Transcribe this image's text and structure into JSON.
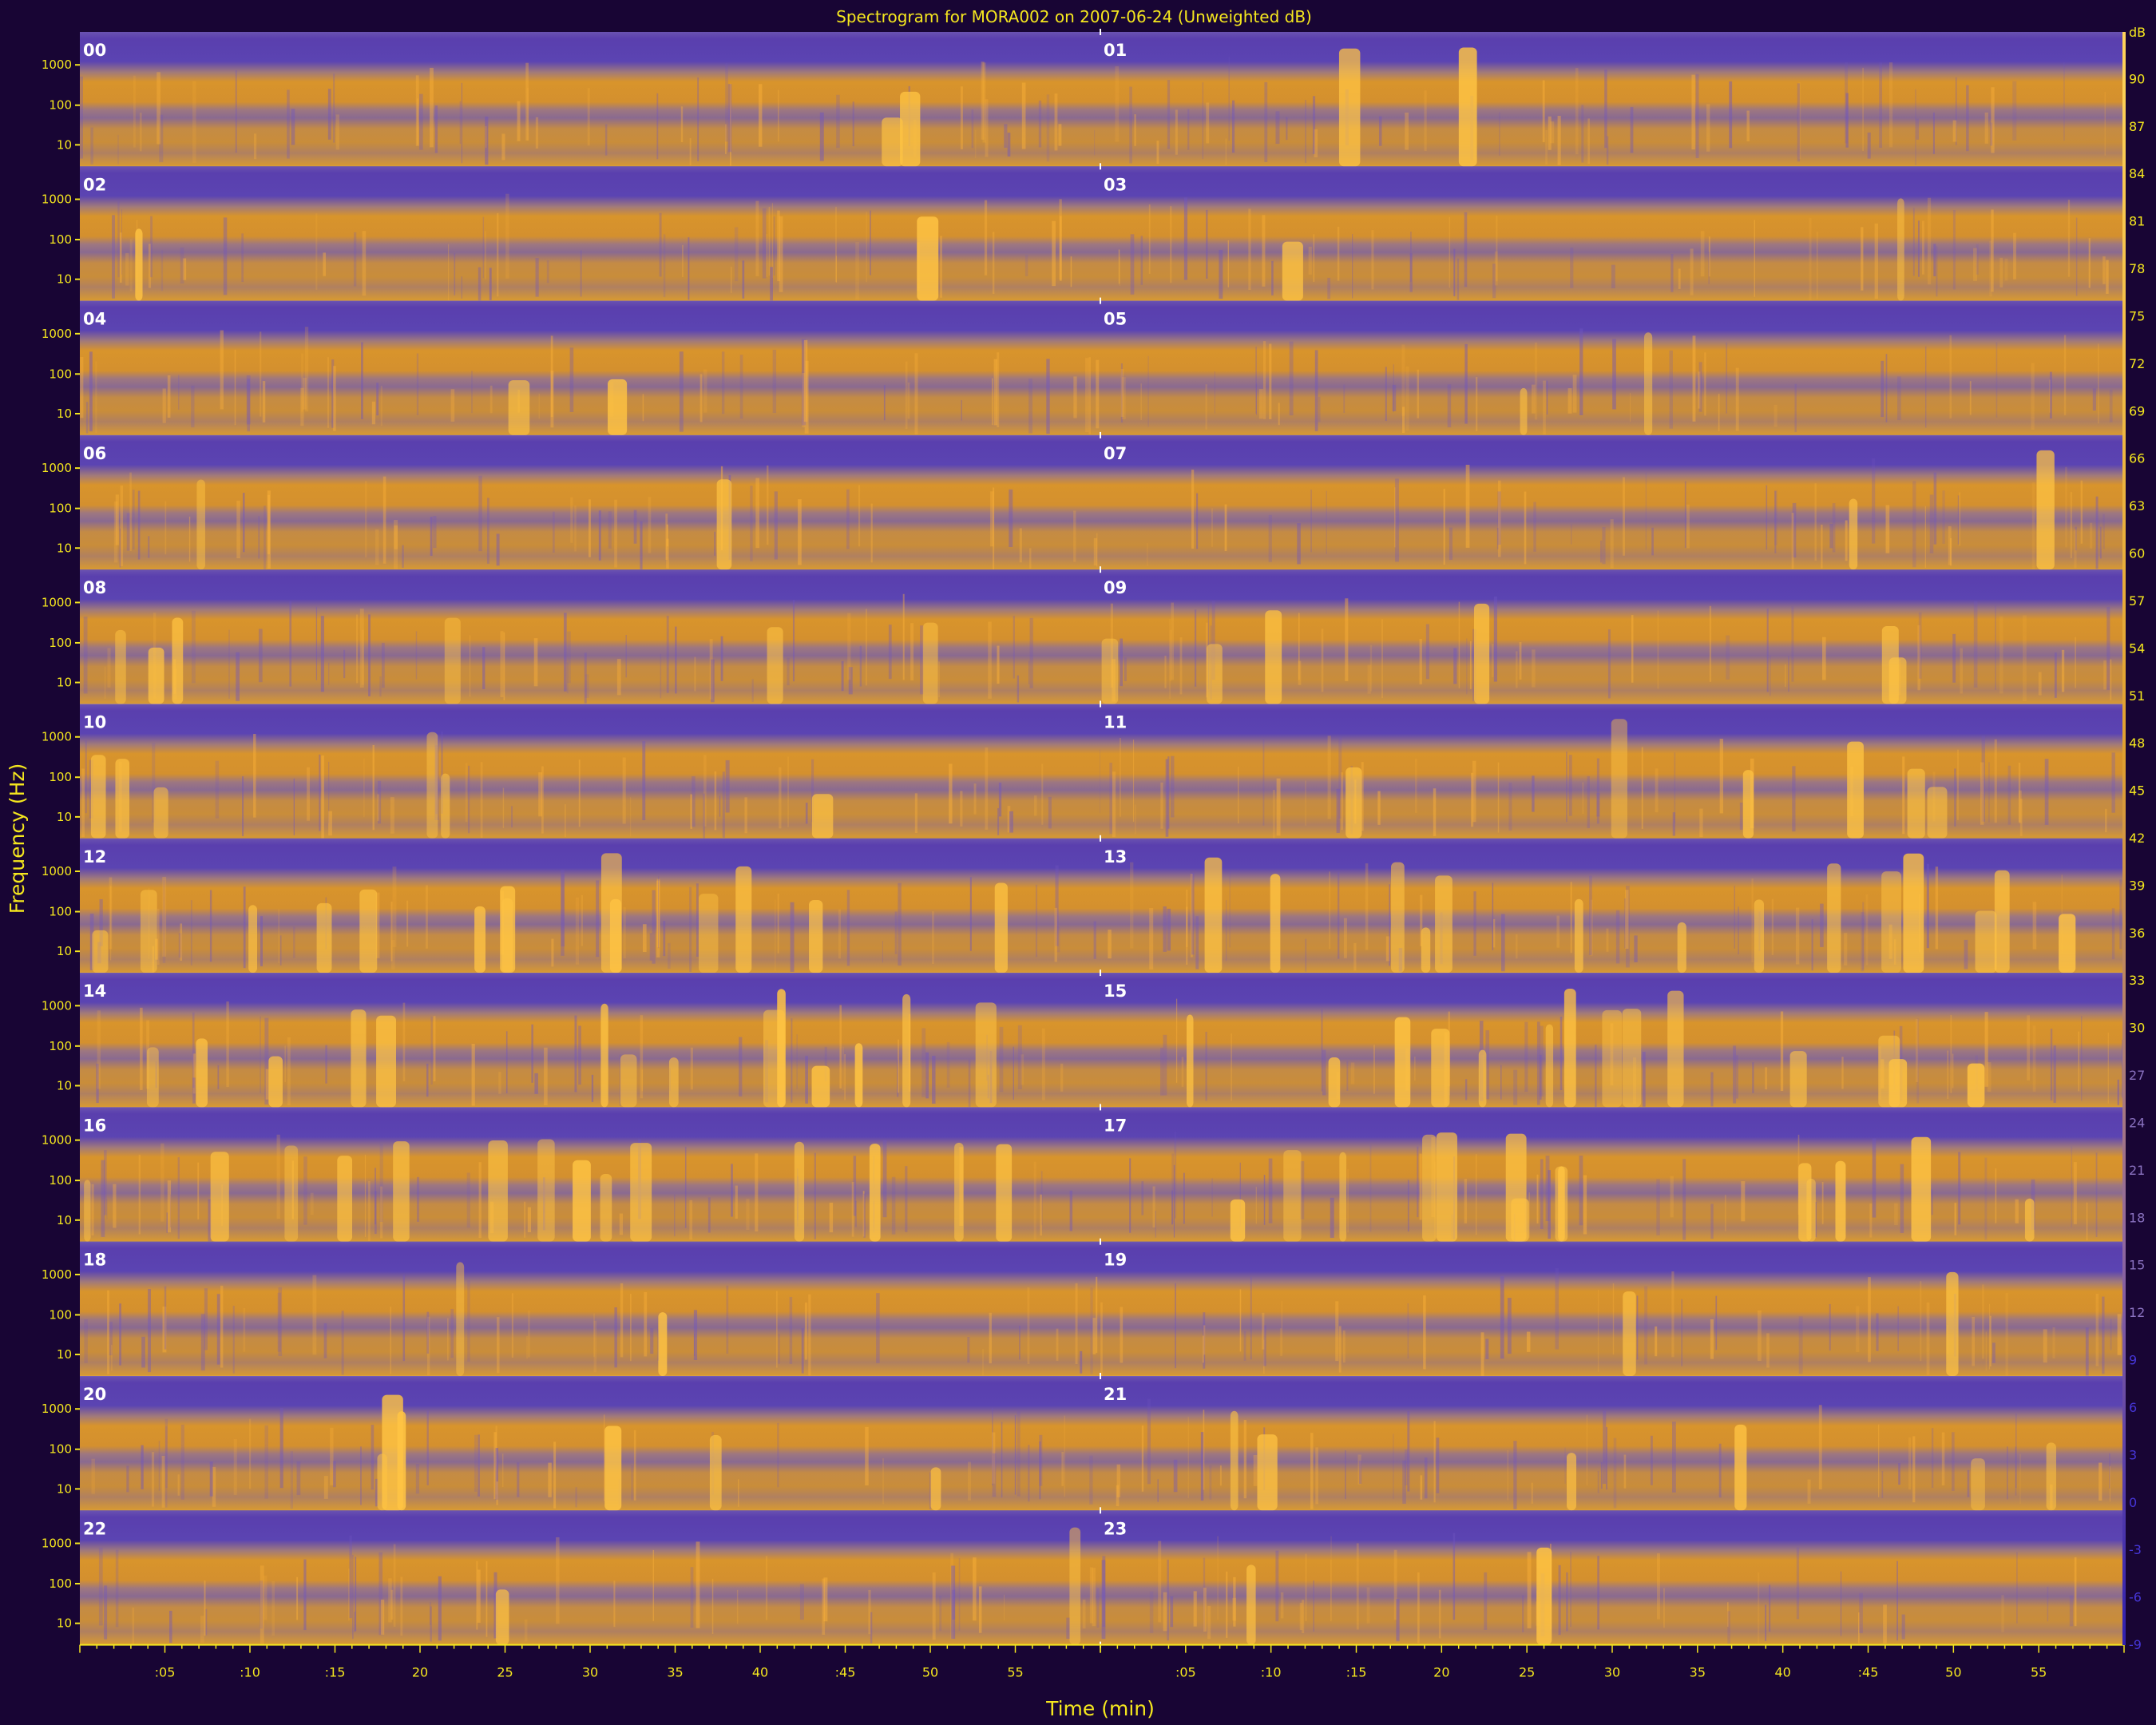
{
  "chart_data": {
    "type": "heatmap",
    "title": "Spectrogram for MORA002 on 2007-06-24 (Unweighted dB)",
    "xlabel": "Time (min)",
    "ylabel": "Frequency (Hz)",
    "y_scale": "log",
    "panels": [
      "00",
      "01",
      "02",
      "03",
      "04",
      "05",
      "06",
      "07",
      "08",
      "09",
      "10",
      "11",
      "12",
      "13",
      "14",
      "15",
      "16",
      "17",
      "18",
      "19",
      "20",
      "21",
      "22",
      "23"
    ],
    "layout": "12 rows x 2 columns, hour panels, each panel spans 60 minutes",
    "y_tick_labels": [
      "1000",
      "100",
      "10"
    ],
    "x_tick_labels": [
      ":05",
      ":10",
      ":15",
      "20",
      "25",
      "30",
      "35",
      "40",
      ":45",
      "50",
      "55"
    ],
    "colorbar": {
      "unit_label": "dB",
      "ticks": [
        90,
        87,
        84,
        81,
        78,
        75,
        72,
        69,
        66,
        63,
        60,
        57,
        54,
        51,
        48,
        45,
        42,
        39,
        36,
        33,
        30,
        27,
        24,
        21,
        18,
        15,
        12,
        9,
        6,
        3,
        0,
        -3,
        -6,
        -9
      ],
      "range": [
        -9,
        93
      ],
      "colormap": "blue-violet to orange to yellow",
      "colors": {
        "low": "#5a45b0",
        "mid": "#d39035",
        "high": "#ffd050"
      }
    },
    "grid": false
  },
  "colors": {
    "background": "#180534",
    "text": "#f5e71e",
    "band_blue": "#5f4eaa",
    "band_orange": "#d4912c"
  }
}
